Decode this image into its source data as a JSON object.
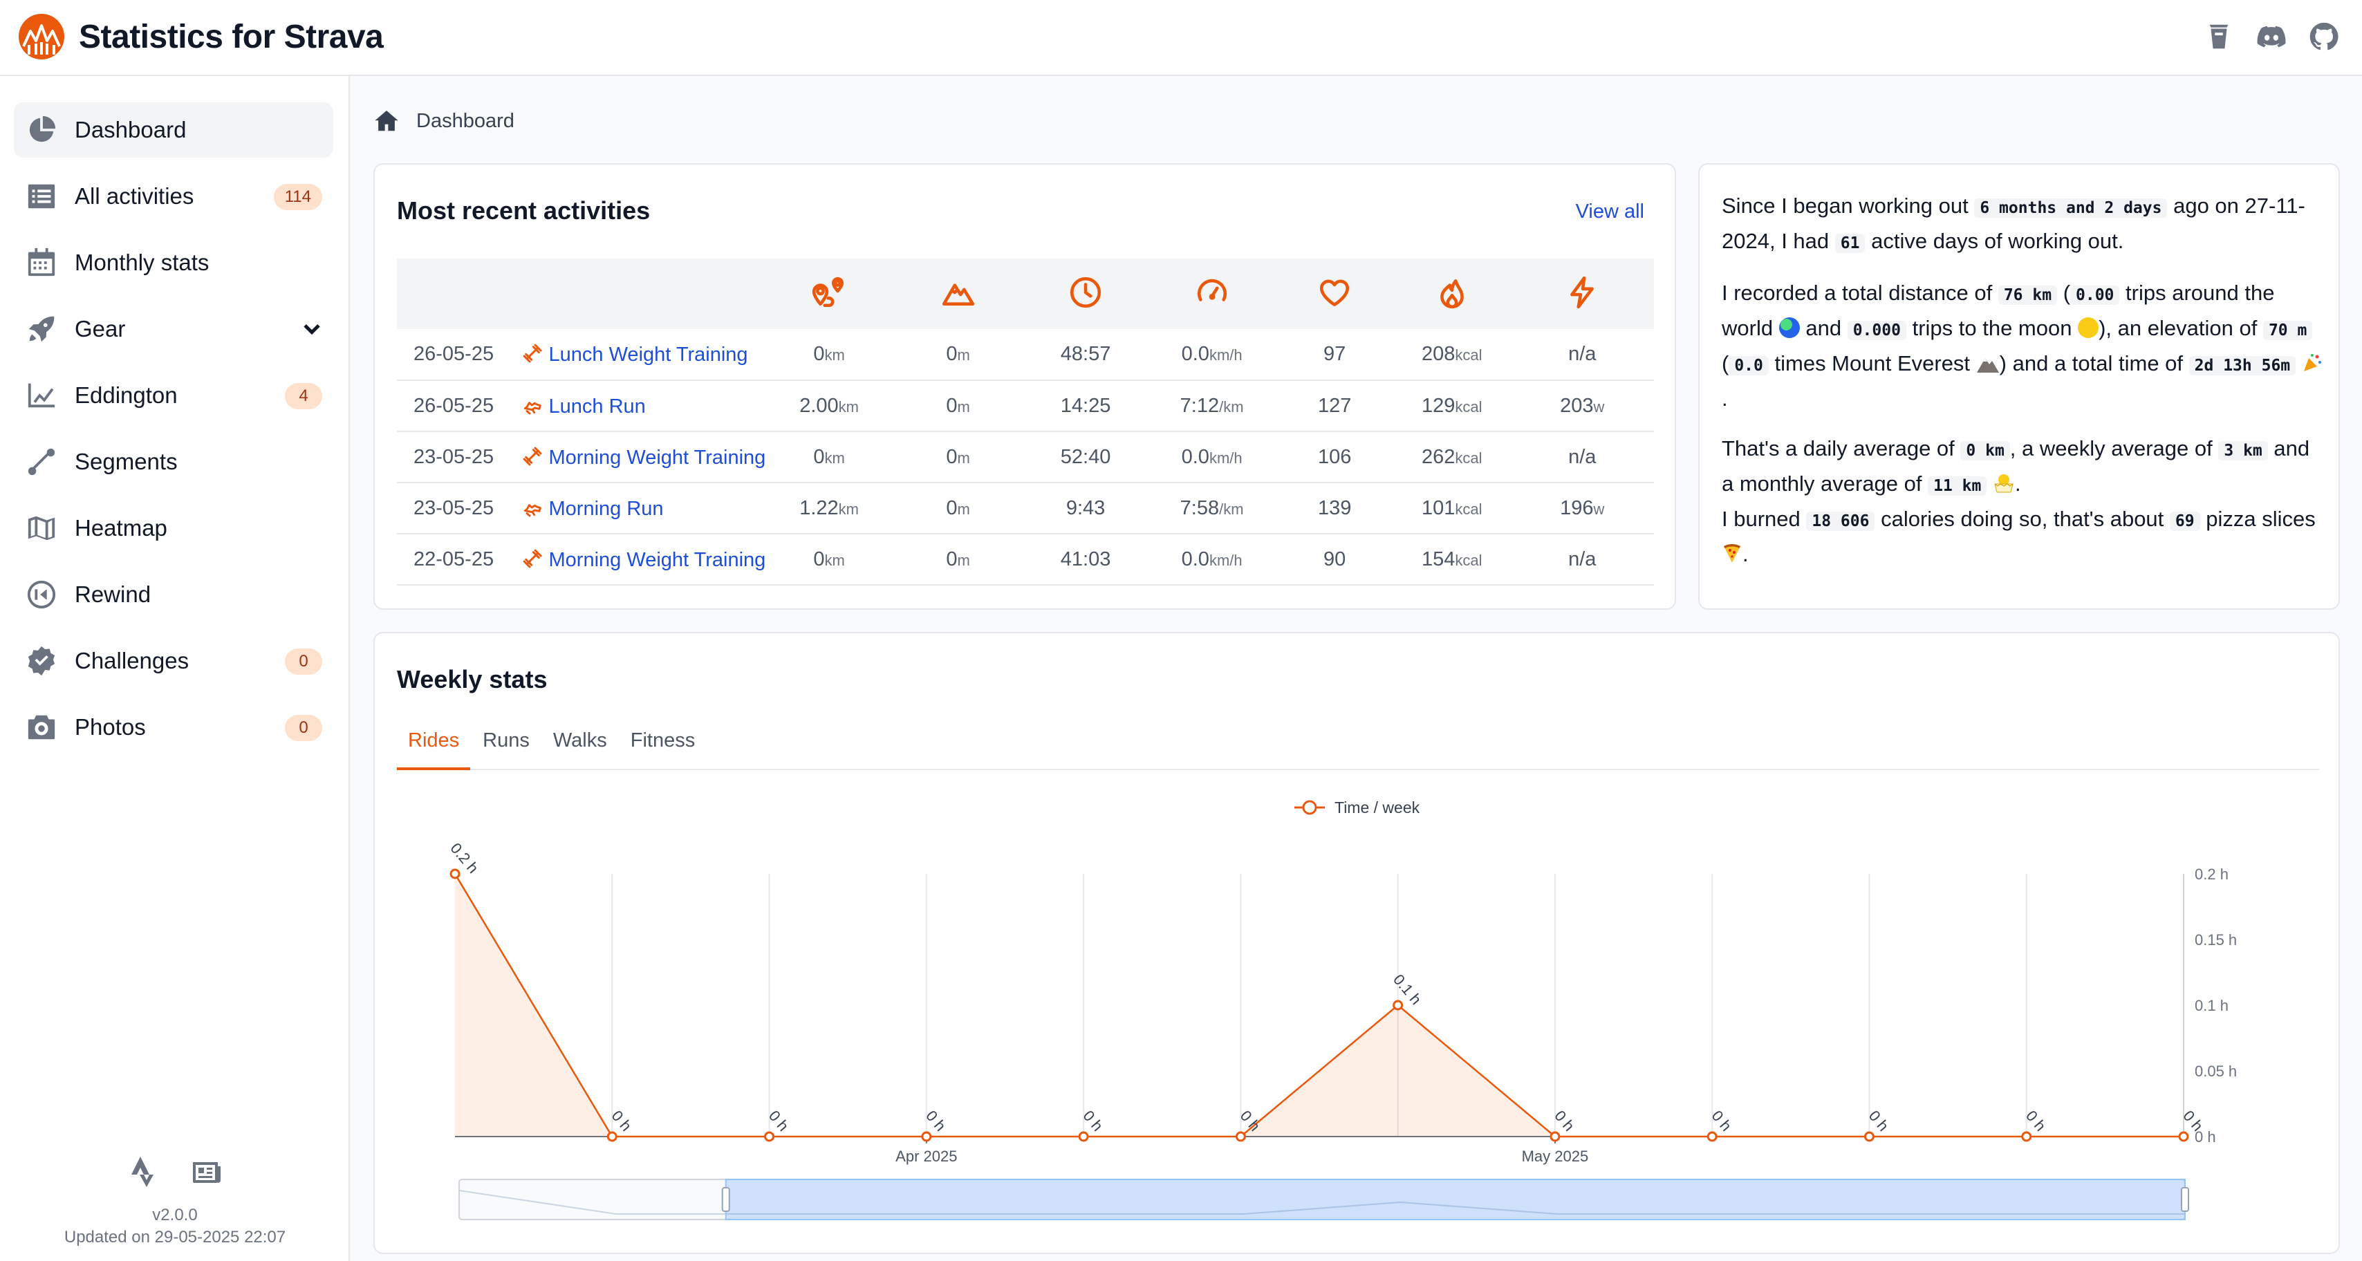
{
  "app": {
    "title": "Statistics for Strava"
  },
  "header_icons": [
    "coffee-icon",
    "discord-icon",
    "github-icon"
  ],
  "sidebar": {
    "items": [
      {
        "label": "Dashboard",
        "icon": "chart-pie-icon",
        "active": true
      },
      {
        "label": "All activities",
        "icon": "list-icon",
        "badge": "114"
      },
      {
        "label": "Monthly stats",
        "icon": "calendar-icon"
      },
      {
        "label": "Gear",
        "icon": "rocket-icon",
        "dropdown": true
      },
      {
        "label": "Eddington",
        "icon": "line-chart-icon",
        "badge": "4"
      },
      {
        "label": "Segments",
        "icon": "segment-icon"
      },
      {
        "label": "Heatmap",
        "icon": "map-icon"
      },
      {
        "label": "Rewind",
        "icon": "rewind-icon"
      },
      {
        "label": "Challenges",
        "icon": "badge-check-icon",
        "badge": "0"
      },
      {
        "label": "Photos",
        "icon": "camera-icon",
        "badge": "0"
      }
    ],
    "footer": {
      "version": "v2.0.0",
      "updated": "Updated on 29-05-2025 22:07"
    }
  },
  "breadcrumb": {
    "label": "Dashboard"
  },
  "recent": {
    "title": "Most recent activities",
    "view_all": "View all",
    "column_icons": [
      "route-icon",
      "mountain-icon",
      "clock-icon",
      "speedometer-icon",
      "heart-icon",
      "flame-icon",
      "bolt-icon"
    ],
    "rows": [
      {
        "date": "26-05-25",
        "type": "weight",
        "name": "Lunch Weight Training",
        "distance": "0",
        "distance_unit": "km",
        "elevation": "0",
        "elevation_unit": "m",
        "time": "48:57",
        "speed": "0.0",
        "speed_unit": "km/h",
        "heart": "97",
        "calories": "208",
        "calories_unit": "kcal",
        "power": "n/a",
        "power_unit": ""
      },
      {
        "date": "26-05-25",
        "type": "run",
        "name": "Lunch Run",
        "distance": "2.00",
        "distance_unit": "km",
        "elevation": "0",
        "elevation_unit": "m",
        "time": "14:25",
        "speed": "7:12",
        "speed_unit": "/km",
        "heart": "127",
        "calories": "129",
        "calories_unit": "kcal",
        "power": "203",
        "power_unit": "w"
      },
      {
        "date": "23-05-25",
        "type": "weight",
        "name": "Morning Weight Training",
        "distance": "0",
        "distance_unit": "km",
        "elevation": "0",
        "elevation_unit": "m",
        "time": "52:40",
        "speed": "0.0",
        "speed_unit": "km/h",
        "heart": "106",
        "calories": "262",
        "calories_unit": "kcal",
        "power": "n/a",
        "power_unit": ""
      },
      {
        "date": "23-05-25",
        "type": "run",
        "name": "Morning Run",
        "distance": "1.22",
        "distance_unit": "km",
        "elevation": "0",
        "elevation_unit": "m",
        "time": "9:43",
        "speed": "7:58",
        "speed_unit": "/km",
        "heart": "139",
        "calories": "101",
        "calories_unit": "kcal",
        "power": "196",
        "power_unit": "w"
      },
      {
        "date": "22-05-25",
        "type": "weight",
        "name": "Morning Weight Training",
        "distance": "0",
        "distance_unit": "km",
        "elevation": "0",
        "elevation_unit": "m",
        "time": "41:03",
        "speed": "0.0",
        "speed_unit": "km/h",
        "heart": "90",
        "calories": "154",
        "calories_unit": "kcal",
        "power": "n/a",
        "power_unit": ""
      }
    ]
  },
  "summary": {
    "p1_a": "Since I began working out",
    "duration": "6 months and 2 days",
    "p1_b": "ago on 27-11-2024, I had",
    "active_days": "61",
    "p1_c": "active days of working out.",
    "p2_a": "I recorded a total distance of",
    "total_distance": "76 km",
    "p2_b": "(",
    "earth_trips": "0.00",
    "p2_c": "trips around the world",
    "p2_d": "and",
    "moon_trips": "0.000",
    "p2_e": "trips to the moon",
    "p2_f": "), an elevation of",
    "elevation": "70 m",
    "p2_g": "(",
    "everest": "0.0",
    "p2_h": "times Mount Everest",
    "p2_i": ") and a total time of",
    "total_time": "2d 13h 56m",
    "p3_a": "That's a daily average of",
    "daily_avg": "0 km",
    "p3_b": ", a weekly average of",
    "weekly_avg": "3 km",
    "p3_c": "and a monthly average of",
    "monthly_avg": "11 km",
    "p4_a": "I burned",
    "calories": "18 606",
    "p4_b": "calories doing so, that's about",
    "pizza": "69",
    "p4_c": "pizza slices",
    "p_end": "."
  },
  "weekly": {
    "title": "Weekly stats",
    "tabs": [
      {
        "label": "Rides",
        "active": true
      },
      {
        "label": "Runs"
      },
      {
        "label": "Walks"
      },
      {
        "label": "Fitness"
      }
    ]
  },
  "colors": {
    "accent": "#ea580c",
    "link": "#1d4ed8",
    "badge_bg": "#fde1cc"
  },
  "chart_data": {
    "type": "area",
    "legend": "Time / week",
    "legend_position": "top-center",
    "series": [
      {
        "name": "Time / week",
        "values": [
          0.2,
          0,
          0,
          0,
          0,
          0,
          0.1,
          0,
          0,
          0,
          0,
          0
        ]
      }
    ],
    "point_labels": [
      "0.2 h",
      "0 h",
      "0 h",
      "0 h",
      "0 h",
      "0 h",
      "0.1 h",
      "0 h",
      "0 h",
      "0 h",
      "0 h",
      "0 h"
    ],
    "x_labels": [
      {
        "index": 3,
        "label": "Apr 2025"
      },
      {
        "index": 7,
        "label": "May 2025"
      }
    ],
    "yticks": [
      "0 h",
      "0.05 h",
      "0.1 h",
      "0.15 h",
      "0.2 h"
    ],
    "ytick_values": [
      0,
      0.05,
      0.1,
      0.15,
      0.2
    ],
    "ylim": [
      0,
      0.2
    ],
    "y_axis_side": "right",
    "zoom_slider": {
      "start_index": 1.7,
      "end_index": 11
    }
  }
}
